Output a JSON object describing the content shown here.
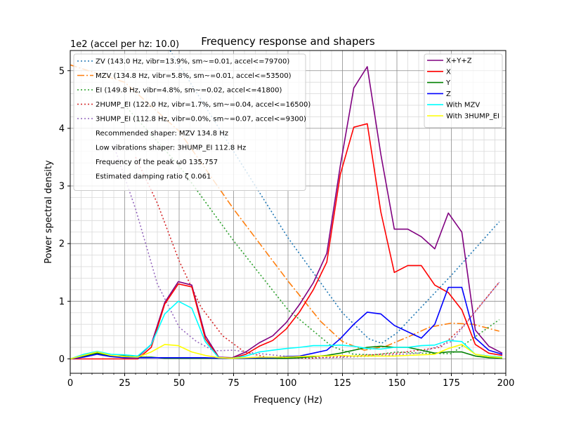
{
  "chart_data": {
    "type": "line",
    "title": "Frequency response and shapers",
    "xlabel": "Frequency (Hz)",
    "ylabel": "Power spectral density",
    "scale_note": "1e2 (accel per hz: 10.0)",
    "xlim": [
      0,
      200
    ],
    "ylim": [
      -0.25,
      5.35
    ],
    "x_ticks": [
      0,
      25,
      50,
      75,
      100,
      125,
      150,
      175,
      200
    ],
    "y_ticks": [
      0,
      1,
      2,
      3,
      4,
      5
    ],
    "grid": true,
    "x": [
      0.0,
      6.2,
      12.4,
      18.6,
      24.8,
      31.0,
      37.2,
      43.4,
      49.6,
      55.8,
      62.0,
      68.2,
      74.4,
      80.6,
      86.8,
      93.0,
      99.2,
      105.4,
      111.6,
      117.8,
      124.0,
      130.2,
      136.4,
      142.6,
      148.8,
      155.0,
      161.2,
      167.4,
      173.6,
      179.8,
      186.0,
      192.2,
      198.4
    ],
    "psd_series": [
      {
        "name": "X+Y+Z",
        "color": "#800080",
        "values": [
          0.0,
          0.05,
          0.1,
          0.05,
          0.05,
          0.03,
          0.25,
          0.98,
          1.34,
          1.28,
          0.4,
          0.03,
          0.02,
          0.12,
          0.28,
          0.4,
          0.63,
          0.95,
          1.32,
          1.83,
          3.35,
          4.7,
          5.07,
          3.55,
          2.25,
          2.25,
          2.12,
          1.91,
          2.53,
          2.2,
          0.5,
          0.22,
          0.1
        ]
      },
      {
        "name": "X",
        "color": "#ff0000",
        "values": [
          0.0,
          0.0,
          0.0,
          0.0,
          0.0,
          0.0,
          0.2,
          0.95,
          1.3,
          1.25,
          0.35,
          0.02,
          0.01,
          0.08,
          0.22,
          0.32,
          0.52,
          0.82,
          1.2,
          1.68,
          3.2,
          4.02,
          4.08,
          2.55,
          1.5,
          1.62,
          1.62,
          1.28,
          1.15,
          0.85,
          0.25,
          0.1,
          0.06
        ]
      },
      {
        "name": "Y",
        "color": "#008000",
        "values": [
          0.0,
          0.05,
          0.1,
          0.05,
          0.05,
          0.03,
          0.03,
          0.01,
          0.01,
          0.01,
          0.01,
          0.01,
          0.01,
          0.01,
          0.01,
          0.01,
          0.01,
          0.02,
          0.04,
          0.06,
          0.1,
          0.15,
          0.2,
          0.22,
          0.2,
          0.2,
          0.15,
          0.1,
          0.12,
          0.12,
          0.05,
          0.02,
          0.01
        ]
      },
      {
        "name": "Z",
        "color": "#0000ff",
        "values": [
          0.0,
          0.03,
          0.08,
          0.04,
          0.02,
          0.02,
          0.02,
          0.02,
          0.02,
          0.02,
          0.02,
          0.01,
          0.01,
          0.01,
          0.02,
          0.02,
          0.04,
          0.05,
          0.1,
          0.15,
          0.35,
          0.6,
          0.81,
          0.78,
          0.58,
          0.47,
          0.36,
          0.6,
          1.24,
          1.24,
          0.36,
          0.15,
          0.08
        ]
      },
      {
        "name": "With MZV",
        "color": "#00ffff",
        "values": [
          0.0,
          0.08,
          0.13,
          0.08,
          0.07,
          0.05,
          0.25,
          0.78,
          1.0,
          0.88,
          0.3,
          0.02,
          0.01,
          0.05,
          0.12,
          0.15,
          0.18,
          0.2,
          0.23,
          0.23,
          0.24,
          0.22,
          0.18,
          0.17,
          0.2,
          0.2,
          0.23,
          0.24,
          0.32,
          0.3,
          0.08,
          0.05,
          0.03
        ]
      },
      {
        "name": "With 3HUMP_EI",
        "color": "#ffff00",
        "values": [
          0.0,
          0.06,
          0.12,
          0.06,
          0.04,
          0.03,
          0.12,
          0.25,
          0.23,
          0.12,
          0.06,
          0.02,
          0.01,
          0.02,
          0.03,
          0.03,
          0.03,
          0.04,
          0.05,
          0.05,
          0.06,
          0.05,
          0.05,
          0.05,
          0.05,
          0.06,
          0.07,
          0.08,
          0.18,
          0.25,
          0.08,
          0.04,
          0.02
        ]
      }
    ],
    "shaper_series": [
      {
        "name": "ZV (143.0 Hz, vibr=13.9%, sm~=0.01, accel<=79700)",
        "color": "#1f77b4",
        "dash": "2,3",
        "x": [
          0,
          25,
          50,
          75,
          100,
          125,
          137,
          143,
          150,
          160,
          175,
          197
        ],
        "values": [
          8.0,
          6.6,
          5.1,
          3.6,
          2.1,
          0.8,
          0.35,
          0.27,
          0.45,
          0.85,
          1.45,
          2.38
        ]
      },
      {
        "name": "MZV (134.8 Hz, vibr=5.8%, sm~=0.01, accel<=53500)",
        "color": "#ff7f0e",
        "dash": "10,3,2,3",
        "x": [
          0,
          25,
          50,
          75,
          100,
          115,
          125,
          135,
          145,
          155,
          165,
          175,
          185,
          197
        ],
        "values": [
          5.1,
          4.8,
          3.95,
          2.6,
          1.35,
          0.65,
          0.3,
          0.15,
          0.22,
          0.38,
          0.55,
          0.62,
          0.6,
          0.48
        ]
      },
      {
        "name": "EI (149.8 Hz, vibr=4.8%, sm~=0.02, accel<=41800)",
        "color": "#2ca02c",
        "dash": "2,3",
        "x": [
          25,
          50,
          75,
          100,
          120,
          130,
          140,
          150,
          160,
          175,
          197
        ],
        "values": [
          4.4,
          3.35,
          2.05,
          0.85,
          0.22,
          0.08,
          0.07,
          0.12,
          0.1,
          0.09,
          0.68
        ]
      },
      {
        "name": "2HUMP_EI (122.0 Hz, vibr=1.7%, sm~=0.04, accel<=16500)",
        "color": "#d62728",
        "dash": "2,3",
        "x": [
          30,
          40,
          50,
          60,
          70,
          80,
          90,
          110,
          130,
          150,
          170,
          180,
          197
        ],
        "values": [
          3.5,
          2.7,
          1.7,
          0.9,
          0.4,
          0.12,
          0.03,
          0.01,
          0.05,
          0.1,
          0.2,
          0.55,
          1.33
        ]
      },
      {
        "name": "3HUMP_EI (112.8 Hz, vibr=0.0%, sm~=0.07, accel<=9300)",
        "color": "#9467bd",
        "dash": "2,3",
        "x": [
          20,
          30,
          40,
          50,
          58,
          66,
          75,
          85,
          100,
          120,
          140,
          160,
          175,
          197
        ],
        "values": [
          3.7,
          2.6,
          1.3,
          0.55,
          0.3,
          0.14,
          0.15,
          0.1,
          0.04,
          0.02,
          0.05,
          0.1,
          0.3,
          1.33
        ]
      }
    ],
    "legend_left_notes": [
      "Recommended shaper: MZV 134.8 Hz",
      "Low vibrations shaper: 3HUMP_EI 112.8 Hz",
      "Frequency of the peak ω0 135.757",
      "Estimated damping ratio ζ 0.061"
    ],
    "legend_left_placement": "upper-left",
    "legend_right_placement": "upper-right"
  }
}
